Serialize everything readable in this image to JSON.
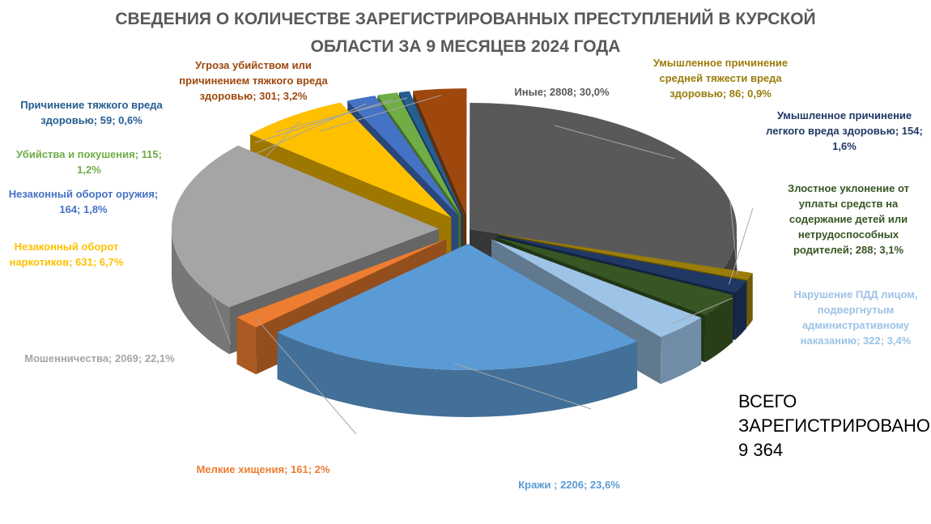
{
  "title_lines": [
    "СВЕДЕНИЯ О КОЛИЧЕСТВЕ ЗАРЕГИСТРИРОВАННЫХ ПРЕСТУПЛЕНИЙ В КУРСКОЙ",
    "ОБЛАСТИ ЗА 9 МЕСЯЦЕВ 2024 ГОДА"
  ],
  "total_lines": [
    "ВСЕГО",
    "ЗАРЕГИСТРИРОВАНО",
    "9 364"
  ],
  "chart_data": {
    "type": "pie",
    "style": "3d-exploded",
    "total": 9364,
    "slices": [
      {
        "name": "Иные",
        "value": 2808,
        "percent": "30,0%",
        "color": "#595959",
        "label_lines": [
          "Иные; 2808; 30,0%"
        ]
      },
      {
        "name": "Умышленное причинение средней тяжести вреда здоровью",
        "value": 86,
        "percent": "0,9%",
        "color": "#9a7d0a",
        "label_lines": [
          "Умышленное причинение",
          "средней тяжести вреда",
          "здоровью; 86; 0,9%"
        ]
      },
      {
        "name": "Умышленное причинение легкого вреда здоровью",
        "value": 154,
        "percent": "1,6%",
        "color": "#1f3864",
        "label_lines": [
          "Умышленное причинение",
          "легкого вреда здоровью; 154;",
          "1,6%"
        ]
      },
      {
        "name": "Злостное уклонение от уплаты средств на содержание детей или нетрудоспособных родителей",
        "value": 288,
        "percent": "3,1%",
        "color": "#375623",
        "label_lines": [
          "Злостное уклонение от",
          "уплаты средств на",
          "содержание детей или",
          "нетрудоспособных",
          "родителей; 288; 3,1%"
        ]
      },
      {
        "name": "Нарушение ПДД лицом, подвергнутым административному наказанию",
        "value": 322,
        "percent": "3,4%",
        "color": "#9dc3e6",
        "label_lines": [
          "Нарушение ПДД лицом,",
          "подвергнутым",
          "административному",
          "наказанию; 322; 3,4%"
        ]
      },
      {
        "name": "Кражи",
        "value": 2206,
        "percent": "23,6%",
        "color": "#5b9bd5",
        "label_lines": [
          "Кражи ; 2206; 23,6%"
        ]
      },
      {
        "name": "Мелкие хищения",
        "value": 161,
        "percent": "2%",
        "color": "#ed7d31",
        "label_lines": [
          "Мелкие хищения; 161; 2%"
        ]
      },
      {
        "name": "Мошенничества",
        "value": 2069,
        "percent": "22,1%",
        "color": "#a5a5a5",
        "label_lines": [
          "Мошенничества; 2069; 22,1%"
        ]
      },
      {
        "name": "Незаконный оборот наркотиков",
        "value": 631,
        "percent": "6,7%",
        "color": "#ffc000",
        "label_lines": [
          "Незаконный оборот",
          "наркотиков; 631; 6,7%"
        ]
      },
      {
        "name": "Незаконный оборот оружия",
        "value": 164,
        "percent": "1,8%",
        "color": "#4472c4",
        "label_lines": [
          "Незаконный оборот оружия;",
          "164; 1,8%"
        ]
      },
      {
        "name": "Убийства и покушения",
        "value": 115,
        "percent": "1,2%",
        "color": "#70ad47",
        "label_lines": [
          "Убийства и покушения; 115;",
          "1,2%"
        ]
      },
      {
        "name": "Причинение тяжкого вреда здоровью",
        "value": 59,
        "percent": "0,6%",
        "color": "#255e91",
        "label_lines": [
          "Причинение тяжкого вреда",
          "здоровью; 59; 0,6%"
        ]
      },
      {
        "name": "Угроза убийством или причинением тяжкого вреда здоровью",
        "value": 301,
        "percent": "3,2%",
        "color": "#9e480e",
        "label_lines": [
          "Угроза убийством или",
          "причинением тяжкого вреда",
          "здоровью; 301; 3,2%"
        ]
      }
    ]
  }
}
